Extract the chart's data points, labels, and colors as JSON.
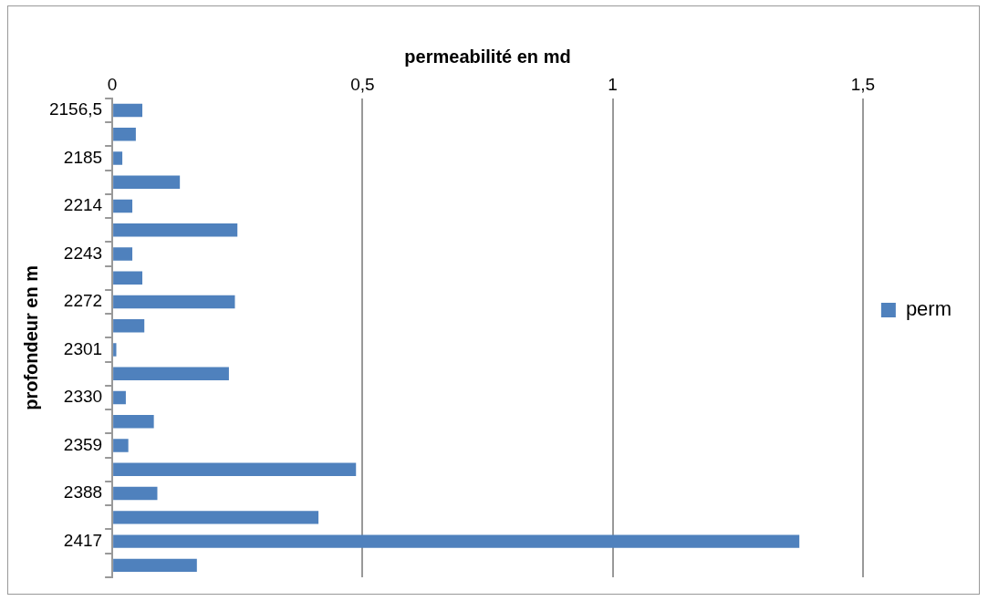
{
  "chart_data": {
    "type": "bar",
    "orientation": "horizontal",
    "xlabel": "permeabilité en md",
    "ylabel": "profondeur en m",
    "categories": [
      "2156,5",
      null,
      "2185",
      null,
      "2214",
      null,
      "2243",
      null,
      "2272",
      null,
      "2301",
      null,
      "2330",
      null,
      "2359",
      null,
      "2388",
      null,
      "2417",
      null
    ],
    "series": [
      {
        "name": "perm",
        "color": "#4f81bd",
        "values": [
          0.06,
          0.047,
          0.02,
          0.135,
          0.04,
          0.25,
          0.04,
          0.06,
          0.245,
          0.064,
          0.008,
          0.233,
          0.027,
          0.083,
          0.032,
          0.487,
          0.09,
          0.412,
          1.373,
          0.169
        ]
      }
    ],
    "xlim": [
      0,
      1.5
    ],
    "xticks": [
      0,
      {
        "value": 0.5,
        "label": "0,5"
      },
      1,
      {
        "value": 1.5,
        "label": "1,5"
      }
    ],
    "grid": "x",
    "legend": "right"
  }
}
